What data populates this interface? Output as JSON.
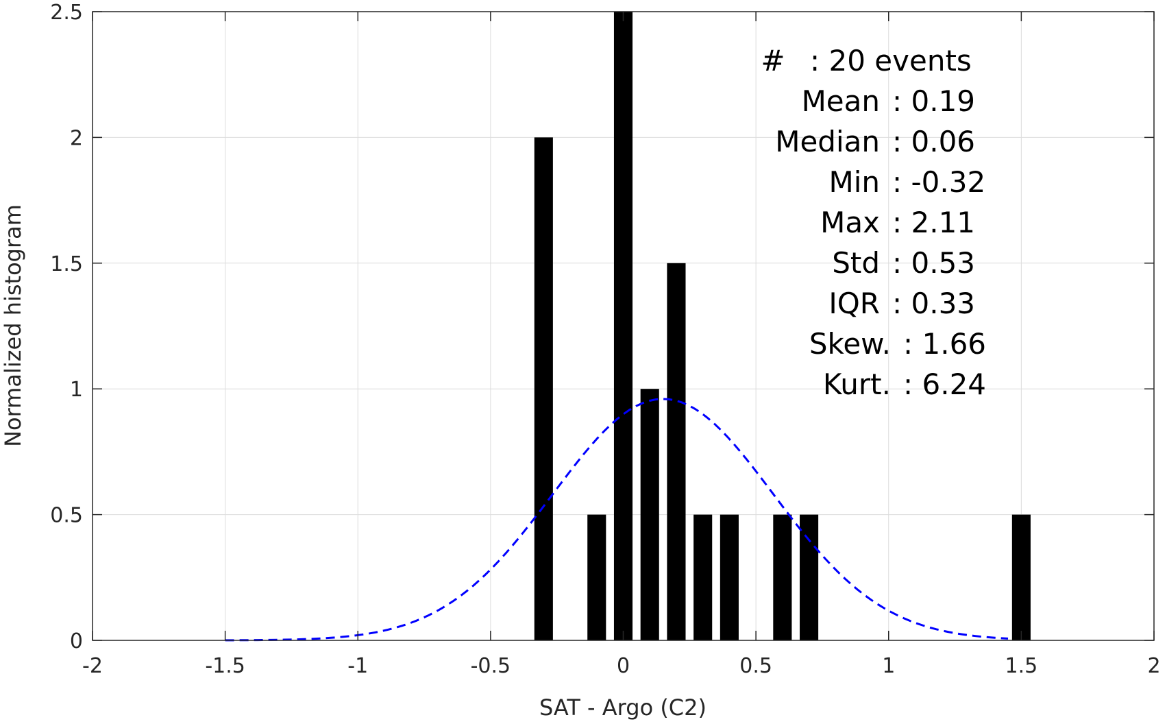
{
  "chart_data": {
    "type": "bar",
    "xlabel": "SAT - Argo (C2)",
    "ylabel": "Normalized histogram",
    "xlim": [
      -2,
      2
    ],
    "ylim": [
      0,
      2.5
    ],
    "xticks": [
      -2,
      -1.5,
      -1,
      -0.5,
      0,
      0.5,
      1,
      1.5,
      2
    ],
    "xtick_labels": [
      "-2",
      "-1.5",
      "-1",
      "-0.5",
      "0",
      "0.5",
      "1",
      "1.5",
      "2"
    ],
    "yticks": [
      0,
      0.5,
      1,
      1.5,
      2,
      2.5
    ],
    "ytick_labels": [
      "0",
      "0.5",
      "1",
      "1.5",
      "2",
      "2.5"
    ],
    "grid": true,
    "bar_color": "#000000",
    "bar_width": 0.07,
    "bars": [
      {
        "x": -0.3,
        "value": 2
      },
      {
        "x": -0.1,
        "value": 0.5
      },
      {
        "x": 0.0,
        "value": 2.5
      },
      {
        "x": 0.1,
        "value": 1
      },
      {
        "x": 0.2,
        "value": 1.5
      },
      {
        "x": 0.3,
        "value": 0.5
      },
      {
        "x": 0.4,
        "value": 0.5
      },
      {
        "x": 0.6,
        "value": 0.5
      },
      {
        "x": 0.7,
        "value": 0.5
      },
      {
        "x": 1.5,
        "value": 0.5
      }
    ],
    "fit_curve": {
      "type": "normal",
      "style": "dashed",
      "color": "#0000ff",
      "x_range": [
        -1.5,
        1.45
      ],
      "mean": 0.15,
      "peak": 0.96,
      "sigma": 0.415
    },
    "stats_lines": [
      {
        "label": "#",
        "value": ": 20 events"
      },
      {
        "label": "Mean",
        "value": ": 0.19"
      },
      {
        "label": "Median",
        "value": ": 0.06"
      },
      {
        "label": "Min",
        "value": ": -0.32"
      },
      {
        "label": "Max",
        "value": ": 2.11"
      },
      {
        "label": "Std",
        "value": ": 0.53"
      },
      {
        "label": "IQR",
        "value": ": 0.33"
      },
      {
        "label": "Skew.",
        "value": ": 1.66"
      },
      {
        "label": "Kurt.",
        "value": ": 6.24"
      }
    ]
  }
}
